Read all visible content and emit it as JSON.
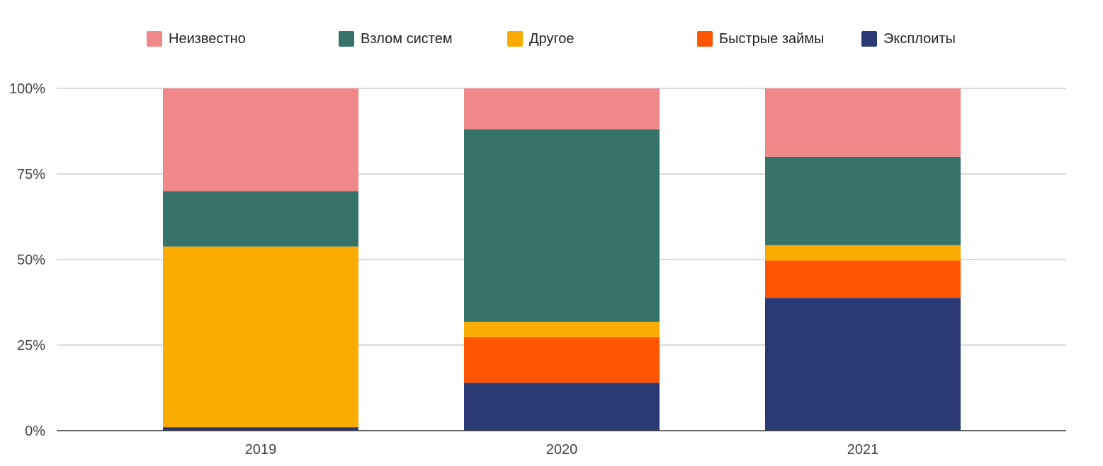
{
  "chart_data": {
    "type": "bar",
    "stacked": true,
    "normalized": true,
    "categories": [
      "2019",
      "2020",
      "2021"
    ],
    "series": [
      {
        "name": "Эксплоиты",
        "color": "#2b3a75",
        "values": [
          1,
          14,
          38.8
        ]
      },
      {
        "name": "Быстрые займы",
        "color": "#ff5500",
        "values": [
          0,
          13.3,
          10.9
        ]
      },
      {
        "name": "Другое",
        "color": "#faab00",
        "values": [
          52.8,
          4.5,
          4.5
        ]
      },
      {
        "name": "Взлом систем",
        "color": "#36736a",
        "values": [
          16.2,
          56.2,
          25.8
        ]
      },
      {
        "name": "Неизвестно",
        "color": "#f08789",
        "values": [
          30,
          12,
          20
        ]
      }
    ],
    "legend_order": [
      "Неизвестно",
      "Взлом систем",
      "Другое",
      "Быстрые займы",
      "Эксплоиты"
    ],
    "ylim": [
      0,
      100
    ],
    "yticks": [
      0,
      25,
      50,
      75,
      100
    ],
    "ytick_labels": [
      "0%",
      "25%",
      "50%",
      "75%",
      "100%"
    ],
    "grid": true,
    "legend_position": "top",
    "title": "",
    "xlabel": "",
    "ylabel": ""
  }
}
